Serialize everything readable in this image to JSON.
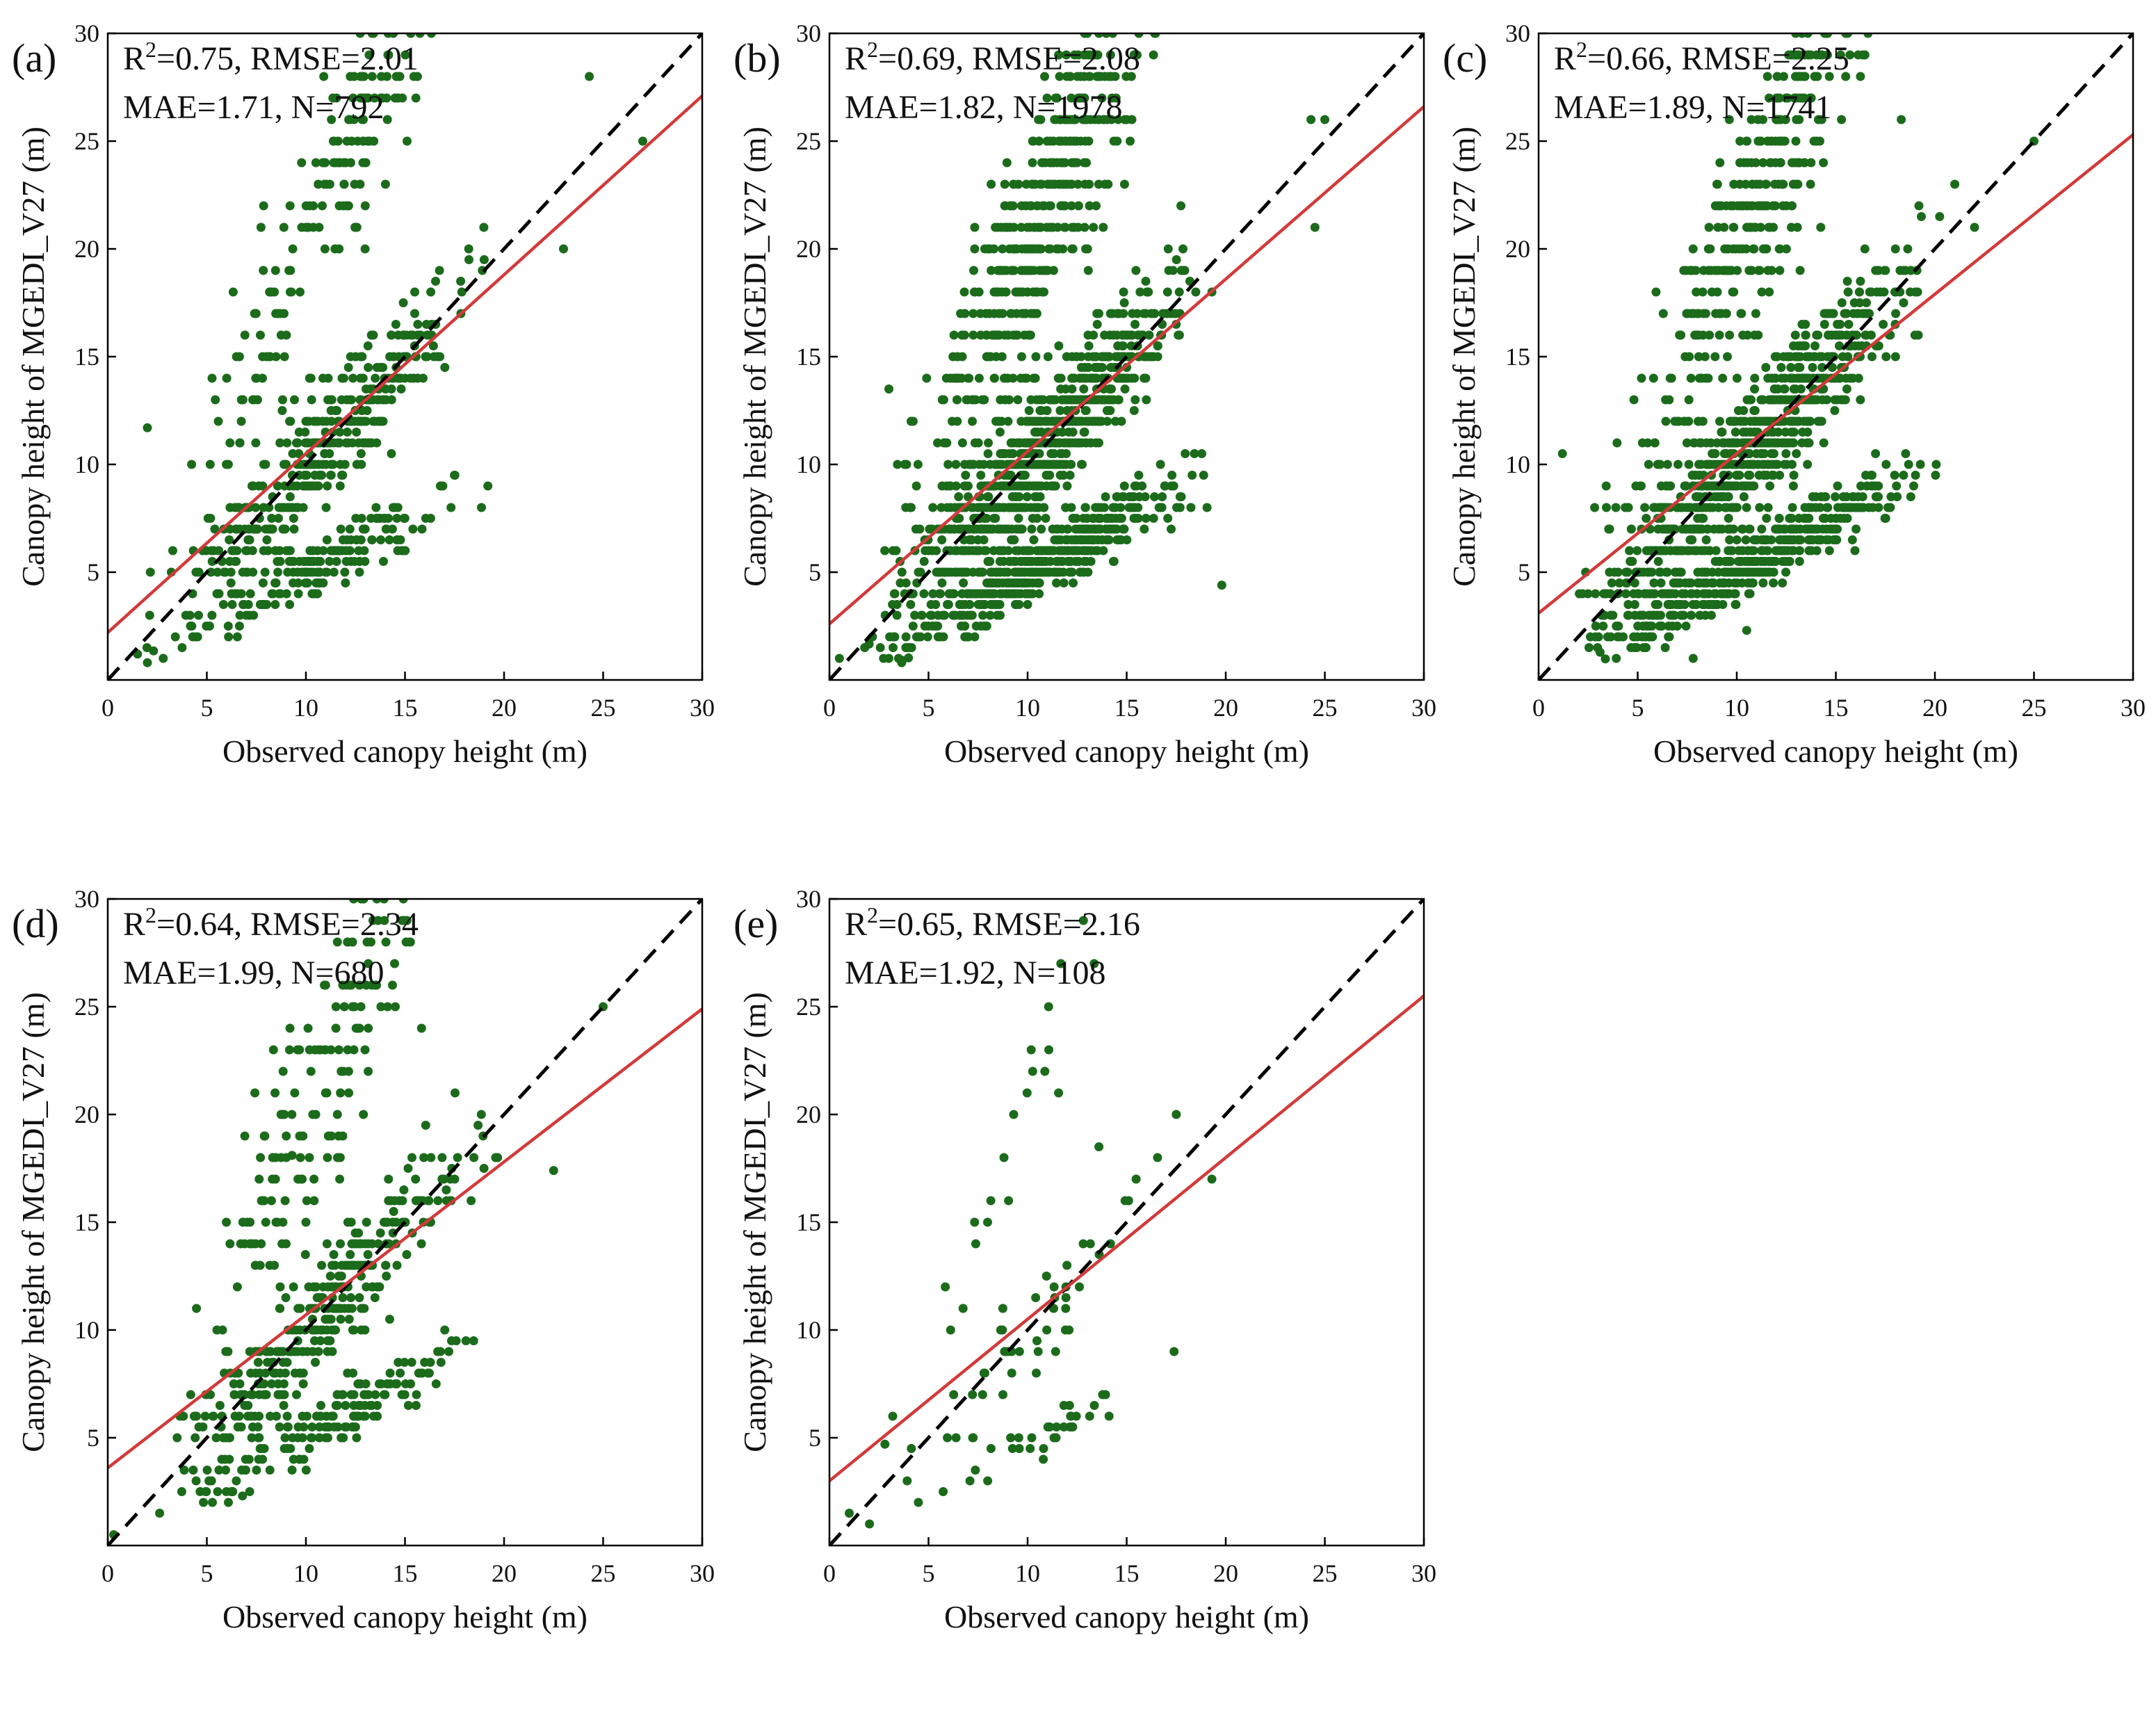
{
  "figure": {
    "xlabel": "Observed canopy height (m)",
    "ylabel": "Canopy height of MGEDI_V27 (m)",
    "point_color": "#1b6b1b",
    "fit_color": "#d23a3a",
    "one_to_one_color": "#000000"
  },
  "chart_data": [
    {
      "type": "scatter",
      "panel": "(a)",
      "stats_line1": {
        "r": "R",
        "sup": "2",
        "rest": "=0.75,  RMSE=2.01"
      },
      "stats_line2": "MAE=1.71,  N=792",
      "xlim": [
        0,
        30
      ],
      "ylim": [
        0,
        30
      ],
      "xticks": [
        "0",
        "5",
        "10",
        "15",
        "20",
        "25",
        "30"
      ],
      "yticks": [
        "5",
        "10",
        "15",
        "20",
        "25",
        "30"
      ],
      "xlabel": "Observed canopy height (m)",
      "ylabel": "Canopy height of MGEDI_V27 (m)",
      "fit": {
        "slope": 0.83,
        "intercept": 2.2
      },
      "n_points": 792,
      "x_range": [
        1,
        21
      ],
      "noise": 1.9,
      "outliers": [
        [
          24.3,
          28
        ],
        [
          27,
          25
        ],
        [
          23,
          20
        ],
        [
          2,
          11.7
        ],
        [
          2,
          0.8
        ],
        [
          1.5,
          1.2
        ]
      ]
    },
    {
      "type": "scatter",
      "panel": "(b)",
      "stats_line1": {
        "r": "R",
        "sup": "2",
        "rest": "=0.69,  RMSE=2.08"
      },
      "stats_line2": "MAE=1.82,  N=1978",
      "xlim": [
        0,
        30
      ],
      "ylim": [
        0,
        30
      ],
      "xticks": [
        "0",
        "5",
        "10",
        "15",
        "20",
        "25",
        "30"
      ],
      "yticks": [
        "5",
        "10",
        "15",
        "20",
        "25",
        "30"
      ],
      "xlabel": "Observed canopy height (m)",
      "ylabel": "Canopy height of MGEDI_V27 (m)",
      "fit": {
        "slope": 0.8,
        "intercept": 2.6
      },
      "n_points": 1978,
      "x_range": [
        1,
        20.5
      ],
      "noise": 2.0,
      "outliers": [
        [
          24.3,
          26
        ],
        [
          25,
          26
        ],
        [
          24.5,
          21
        ],
        [
          19.8,
          4.4
        ],
        [
          3,
          13.5
        ],
        [
          0.5,
          1.0
        ]
      ]
    },
    {
      "type": "scatter",
      "panel": "(c)",
      "stats_line1": {
        "r": "R",
        "sup": "2",
        "rest": "=0.66,  RMSE=2.25"
      },
      "stats_line2": "MAE=1.89,  N=1741",
      "xlim": [
        0,
        30
      ],
      "ylim": [
        0,
        30
      ],
      "xticks": [
        "0",
        "5",
        "10",
        "15",
        "20",
        "25",
        "30"
      ],
      "yticks": [
        "5",
        "10",
        "15",
        "20",
        "25",
        "30"
      ],
      "xlabel": "Observed canopy height (m)",
      "ylabel": "Canopy height of MGEDI_V27 (m)",
      "fit": {
        "slope": 0.74,
        "intercept": 3.1
      },
      "n_points": 1741,
      "x_range": [
        0.5,
        21.5
      ],
      "noise": 2.1,
      "outliers": [
        [
          18.3,
          26
        ],
        [
          25,
          25
        ],
        [
          1.2,
          10.5
        ],
        [
          7.8,
          1.0
        ],
        [
          10.5,
          2.3
        ],
        [
          22,
          21
        ]
      ]
    },
    {
      "type": "scatter",
      "panel": "(d)",
      "stats_line1": {
        "r": "R",
        "sup": "2",
        "rest": "=0.64,  RMSE=2.34"
      },
      "stats_line2": "MAE=1.99,  N=680",
      "xlim": [
        0,
        30
      ],
      "ylim": [
        0,
        30
      ],
      "xticks": [
        "0",
        "5",
        "10",
        "15",
        "20",
        "25",
        "30"
      ],
      "yticks": [
        "5",
        "10",
        "15",
        "20",
        "25",
        "30"
      ],
      "xlabel": "Observed canopy height (m)",
      "ylabel": "Canopy height of MGEDI_V27 (m)",
      "fit": {
        "slope": 0.71,
        "intercept": 3.6
      },
      "n_points": 680,
      "x_range": [
        1,
        21
      ],
      "noise": 1.9,
      "outliers": [
        [
          25,
          25
        ],
        [
          22.5,
          17.4
        ],
        [
          9.3,
          18.1
        ],
        [
          6.8,
          2.3
        ],
        [
          0.3,
          0.5
        ],
        [
          13.6,
          6.5
        ]
      ]
    },
    {
      "type": "scatter",
      "panel": "(e)",
      "stats_line1": {
        "r": "R",
        "sup": "2",
        "rest": "=0.65,  RMSE=2.16"
      },
      "stats_line2": "MAE=1.92,  N=108",
      "xlim": [
        0,
        30
      ],
      "ylim": [
        0,
        30
      ],
      "xticks": [
        "0",
        "5",
        "10",
        "15",
        "20",
        "25",
        "30"
      ],
      "yticks": [
        "5",
        "10",
        "15",
        "20",
        "25",
        "30"
      ],
      "xlabel": "Observed canopy height (m)",
      "ylabel": "Canopy height of MGEDI_V27 (m)",
      "fit": {
        "slope": 0.75,
        "intercept": 3.0
      },
      "n_points": 108,
      "x_range": [
        1,
        19.5
      ],
      "noise": 1.8,
      "outliers": [
        [
          17.5,
          20
        ],
        [
          13.6,
          18.5
        ],
        [
          19.3,
          17
        ],
        [
          1.0,
          1.5
        ],
        [
          2.8,
          4.7
        ]
      ]
    }
  ]
}
